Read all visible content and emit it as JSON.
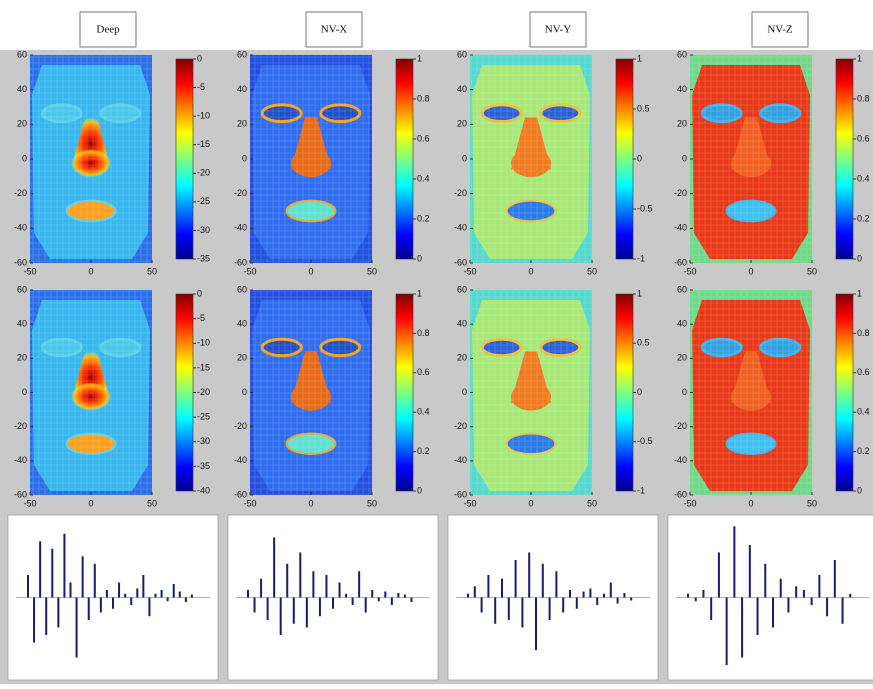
{
  "columns": [
    {
      "title": "Deep",
      "colorbar_rows": [
        [
          0,
          -5,
          -10,
          -15,
          -20,
          -25,
          -30,
          -35
        ],
        [
          0,
          -5,
          -10,
          -15,
          -20,
          -25,
          -30,
          -35,
          -40
        ]
      ],
      "stems": [
        0.3,
        -0.6,
        0.75,
        -0.5,
        0.65,
        -0.4,
        0.85,
        0.2,
        -0.8,
        0.55,
        -0.3,
        0.45,
        -0.2,
        0.1,
        -0.15,
        0.2,
        0.05,
        -0.1,
        0.12,
        0.3,
        -0.25,
        0.05,
        0.1,
        -0.05,
        0.18,
        0.08,
        -0.06,
        0.04
      ]
    },
    {
      "title": "NV-X",
      "colorbar_rows": [
        [
          1,
          0.8,
          0.6,
          0.4,
          0.2,
          0
        ],
        [
          1,
          0.8,
          0.6,
          0.4,
          0.2,
          0
        ]
      ],
      "stems": [
        0.1,
        -0.2,
        0.25,
        -0.3,
        0.8,
        -0.5,
        0.45,
        -0.35,
        0.6,
        -0.4,
        0.35,
        -0.25,
        0.3,
        -0.15,
        0.2,
        0.05,
        -0.1,
        0.35,
        -0.2,
        0.1,
        -0.05,
        0.08,
        -0.1,
        0.06,
        0.04,
        -0.06
      ]
    },
    {
      "title": "NV-Y",
      "colorbar_rows": [
        [
          1,
          0.5,
          0,
          -0.5,
          -1
        ],
        [
          1,
          0.5,
          0,
          -0.5,
          -1
        ]
      ],
      "stems": [
        0.05,
        0.15,
        -0.2,
        0.3,
        -0.35,
        0.25,
        -0.3,
        0.5,
        -0.4,
        0.6,
        -0.7,
        0.45,
        -0.3,
        0.35,
        -0.2,
        0.1,
        -0.15,
        0.08,
        0.12,
        -0.1,
        0.05,
        0.2,
        -0.08,
        0.06,
        -0.04
      ]
    },
    {
      "title": "NV-Z",
      "colorbar_rows": [
        [
          1,
          0.8,
          0.6,
          0.4,
          0.2,
          0
        ],
        [
          1,
          0.8,
          0.6,
          0.4,
          0.2,
          0
        ]
      ],
      "stems": [
        0.05,
        -0.05,
        0.1,
        -0.3,
        0.6,
        -0.9,
        0.95,
        -0.8,
        0.7,
        -0.5,
        0.45,
        -0.4,
        0.25,
        -0.2,
        0.15,
        0.1,
        -0.1,
        0.3,
        -0.25,
        0.5,
        -0.35,
        0.05
      ]
    }
  ],
  "axes": {
    "yticks": [
      60,
      40,
      20,
      0,
      -20,
      -40,
      -60
    ],
    "xticks": [
      -50,
      0,
      50
    ]
  }
}
